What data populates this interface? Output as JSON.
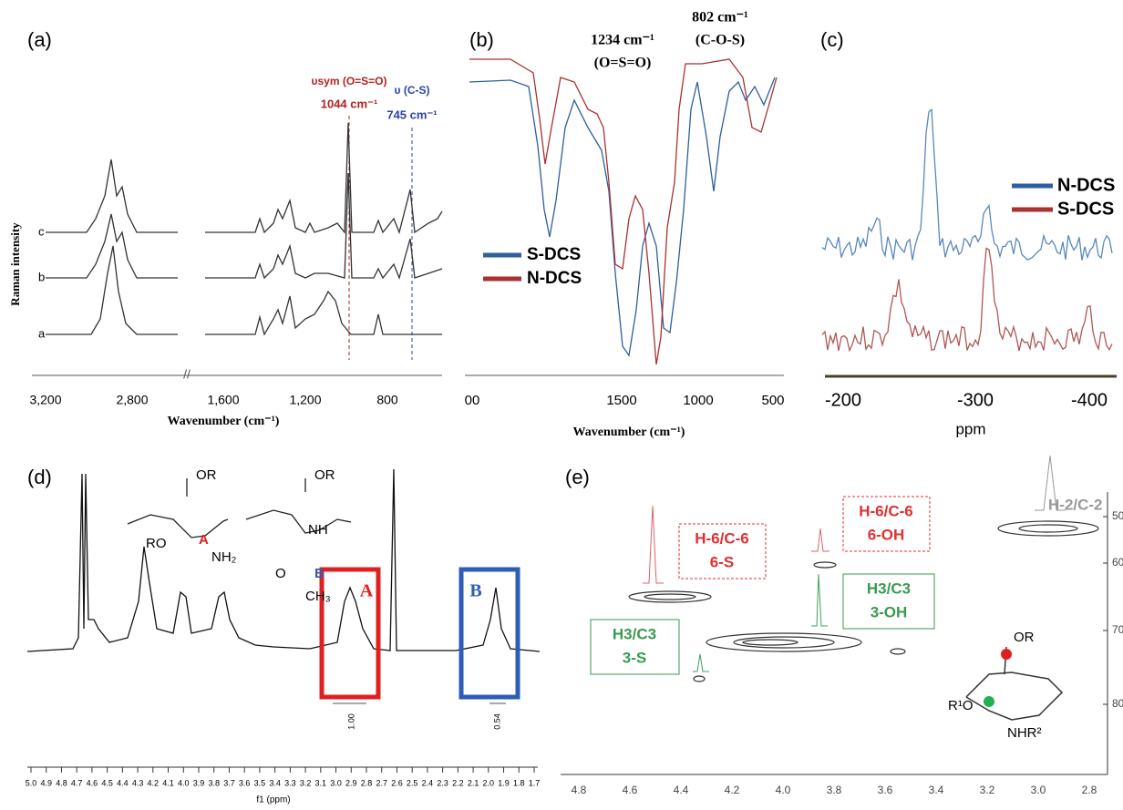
{
  "panel_a": {
    "label": "(a)",
    "ylabel": "Raman intensity",
    "xlabel": "Wavenumber (cm⁻¹)",
    "xticks": [
      "3,200",
      "2,800",
      "1,600",
      "1,200",
      "800"
    ],
    "traces": [
      "c",
      "b",
      "a"
    ],
    "annotations": [
      "υsym (O=S=O)",
      "1044 cm⁻¹",
      "υ (C-S)",
      "745 cm⁻¹"
    ]
  },
  "panel_b": {
    "label": "(b)",
    "annotations": [
      "1234 cm⁻¹",
      "(O=S=O)",
      "802 cm⁻¹",
      "(C-O-S)"
    ],
    "xticks": [
      "00",
      "1500",
      "1000",
      "500"
    ],
    "xlabel": "Wavenumber (cm⁻¹)",
    "legend": [
      "S-DCS",
      "N-DCS"
    ]
  },
  "panel_c": {
    "label": "(c)",
    "legend": [
      "N-DCS",
      "S-DCS"
    ],
    "xticks": [
      "-200",
      "-300",
      "-400"
    ],
    "xlabel": "ppm"
  },
  "panel_d": {
    "label": "(d)",
    "xticks": [
      "5.0",
      "4.9",
      "4.8",
      "4.7",
      "4.6",
      "4.5",
      "4.4",
      "4.3",
      "4.2",
      "4.1",
      "4.0",
      "3.9",
      "3.8",
      "3.7",
      "3.6",
      "3.5",
      "3.4",
      "3.3",
      "3.2",
      "3.1",
      "3.0",
      "2.9",
      "2.8",
      "2.7",
      "2.6",
      "2.5",
      "2.4",
      "2.3",
      "2.2",
      "2.1",
      "2.0",
      "1.9",
      "1.8",
      "1.7"
    ],
    "xlabel": "f1 (ppm)",
    "boxes": [
      "A",
      "B"
    ],
    "integrals": [
      "1.00",
      "0.54"
    ],
    "structure": [
      "OR",
      "OR",
      "RO",
      "A",
      "NH₂",
      "NH",
      "O",
      "B",
      "CH₃"
    ]
  },
  "panel_e": {
    "label": "(e)",
    "xticks": [
      "4.8",
      "4.6",
      "4.4",
      "4.2",
      "4.0",
      "3.8",
      "3.6",
      "3.4",
      "3.2",
      "3.0",
      "2.8"
    ],
    "yticks": [
      "50",
      "60",
      "70",
      "80"
    ],
    "labels": [
      "H-6/C-6",
      "6-S",
      "H-6/C-6",
      "6-OH",
      "H3/C3",
      "3-OH",
      "H3/C3",
      "3-S",
      "H-2/C-2"
    ],
    "structure": [
      "OR",
      "R¹O",
      "NHR²"
    ]
  }
}
